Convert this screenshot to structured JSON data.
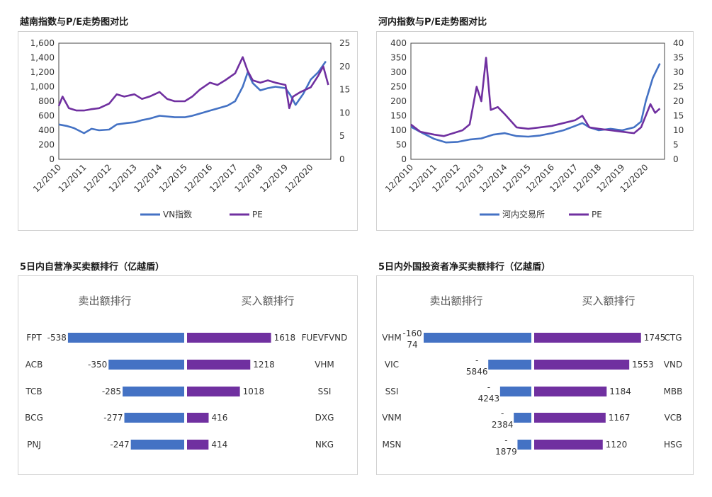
{
  "colors": {
    "blue": "#4472c4",
    "purple": "#7030a0"
  },
  "chart_data": [
    {
      "type": "line",
      "title": "越南指数与P/E走势图对比",
      "x_labels": [
        "12/2010",
        "12/2011",
        "12/2012",
        "12/2013",
        "12/2014",
        "12/2015",
        "12/2016",
        "12/2017",
        "12/2018",
        "12/2019",
        "12/2020"
      ],
      "y_left": {
        "ticks": [
          "0",
          "200",
          "400",
          "600",
          "800",
          "1,000",
          "1,200",
          "1,400",
          "1,600"
        ],
        "range": [
          0,
          1600
        ]
      },
      "y_right": {
        "ticks": [
          "0",
          "5",
          "10",
          "15",
          "20",
          "25"
        ],
        "range": [
          0,
          25
        ]
      },
      "series": [
        {
          "name": "VN指数",
          "axis": "left",
          "color": "#4472c4",
          "values": [
            [
              0,
              480
            ],
            [
              0.3,
              460
            ],
            [
              0.6,
              430
            ],
            [
              1.0,
              360
            ],
            [
              1.3,
              420
            ],
            [
              1.6,
              400
            ],
            [
              2.0,
              410
            ],
            [
              2.3,
              480
            ],
            [
              2.7,
              500
            ],
            [
              3.0,
              510
            ],
            [
              3.3,
              540
            ],
            [
              3.6,
              560
            ],
            [
              4.0,
              600
            ],
            [
              4.3,
              590
            ],
            [
              4.6,
              580
            ],
            [
              5.0,
              580
            ],
            [
              5.3,
              600
            ],
            [
              5.7,
              640
            ],
            [
              6.0,
              670
            ],
            [
              6.3,
              700
            ],
            [
              6.7,
              740
            ],
            [
              7.0,
              800
            ],
            [
              7.3,
              1000
            ],
            [
              7.5,
              1200
            ],
            [
              7.7,
              1050
            ],
            [
              8.0,
              950
            ],
            [
              8.3,
              980
            ],
            [
              8.6,
              1000
            ],
            [
              9.0,
              980
            ],
            [
              9.2,
              880
            ],
            [
              9.4,
              750
            ],
            [
              9.7,
              900
            ],
            [
              10.0,
              1100
            ],
            [
              10.3,
              1200
            ],
            [
              10.6,
              1350
            ]
          ]
        },
        {
          "name": "PE",
          "axis": "right",
          "color": "#7030a0",
          "values": [
            [
              0,
              11.5
            ],
            [
              0.15,
              13.5
            ],
            [
              0.4,
              11
            ],
            [
              0.7,
              10.5
            ],
            [
              1.0,
              10.5
            ],
            [
              1.3,
              10.8
            ],
            [
              1.6,
              11
            ],
            [
              2.0,
              12
            ],
            [
              2.3,
              14
            ],
            [
              2.6,
              13.5
            ],
            [
              3.0,
              14
            ],
            [
              3.3,
              13
            ],
            [
              3.6,
              13.5
            ],
            [
              4.0,
              14.5
            ],
            [
              4.3,
              13
            ],
            [
              4.6,
              12.5
            ],
            [
              5.0,
              12.5
            ],
            [
              5.3,
              13.5
            ],
            [
              5.6,
              15
            ],
            [
              6.0,
              16.5
            ],
            [
              6.3,
              16
            ],
            [
              6.6,
              17
            ],
            [
              7.0,
              18.5
            ],
            [
              7.3,
              22
            ],
            [
              7.5,
              19
            ],
            [
              7.7,
              17
            ],
            [
              8.0,
              16.5
            ],
            [
              8.3,
              17
            ],
            [
              8.6,
              16.5
            ],
            [
              9.0,
              16
            ],
            [
              9.15,
              11
            ],
            [
              9.3,
              13.5
            ],
            [
              9.6,
              14.5
            ],
            [
              10.0,
              15.5
            ],
            [
              10.3,
              18
            ],
            [
              10.5,
              20
            ],
            [
              10.7,
              16
            ]
          ]
        }
      ],
      "legend": [
        "VN指数",
        "PE"
      ]
    },
    {
      "type": "line",
      "title": "河内指数与P/E走势图对比",
      "x_labels": [
        "12/2010",
        "12/2011",
        "12/2012",
        "12/2013",
        "12/2014",
        "12/2015",
        "12/2016",
        "12/2017",
        "12/2018",
        "12/2019",
        "12/2020"
      ],
      "y_left": {
        "ticks": [
          "0",
          "50",
          "100",
          "150",
          "200",
          "250",
          "300",
          "350",
          "400"
        ],
        "range": [
          0,
          400
        ]
      },
      "y_right": {
        "ticks": [
          "0",
          "5",
          "10",
          "15",
          "20",
          "25",
          "30",
          "35",
          "40"
        ],
        "range": [
          0,
          40
        ]
      },
      "series": [
        {
          "name": "河内交易所",
          "axis": "left",
          "color": "#4472c4",
          "values": [
            [
              0,
              112
            ],
            [
              0.5,
              90
            ],
            [
              1.0,
              70
            ],
            [
              1.5,
              58
            ],
            [
              2.0,
              60
            ],
            [
              2.5,
              68
            ],
            [
              3.0,
              72
            ],
            [
              3.5,
              85
            ],
            [
              4.0,
              90
            ],
            [
              4.5,
              80
            ],
            [
              5.0,
              78
            ],
            [
              5.5,
              82
            ],
            [
              6.0,
              90
            ],
            [
              6.5,
              100
            ],
            [
              7.0,
              115
            ],
            [
              7.3,
              125
            ],
            [
              7.6,
              110
            ],
            [
              8.0,
              100
            ],
            [
              8.5,
              105
            ],
            [
              9.0,
              100
            ],
            [
              9.5,
              110
            ],
            [
              9.8,
              130
            ],
            [
              10.0,
              200
            ],
            [
              10.3,
              280
            ],
            [
              10.6,
              330
            ]
          ]
        },
        {
          "name": "PE",
          "axis": "right",
          "color": "#7030a0",
          "values": [
            [
              0,
              12
            ],
            [
              0.4,
              9.5
            ],
            [
              1.0,
              8.5
            ],
            [
              1.4,
              8
            ],
            [
              1.8,
              9
            ],
            [
              2.2,
              10
            ],
            [
              2.5,
              12
            ],
            [
              2.8,
              25
            ],
            [
              3.0,
              20
            ],
            [
              3.2,
              35
            ],
            [
              3.4,
              17
            ],
            [
              3.7,
              18
            ],
            [
              4.0,
              15.5
            ],
            [
              4.5,
              11
            ],
            [
              5.0,
              10.5
            ],
            [
              5.5,
              11
            ],
            [
              6.0,
              11.5
            ],
            [
              6.5,
              12.5
            ],
            [
              7.0,
              13.5
            ],
            [
              7.3,
              15
            ],
            [
              7.6,
              11
            ],
            [
              8.0,
              10.5
            ],
            [
              8.5,
              10
            ],
            [
              9.0,
              9.5
            ],
            [
              9.5,
              9
            ],
            [
              9.8,
              11
            ],
            [
              10.0,
              15
            ],
            [
              10.2,
              19
            ],
            [
              10.4,
              16
            ],
            [
              10.6,
              17.5
            ]
          ]
        }
      ],
      "legend": [
        "河内交易所",
        "PE"
      ]
    },
    {
      "type": "bar",
      "title": "5日内自营净买卖额排行（亿越盾）",
      "sell_header": "卖出额排行",
      "buy_header": "买入额排行",
      "sell": [
        {
          "ticker": "FPT",
          "value": -538,
          "label": "-538"
        },
        {
          "ticker": "ACB",
          "value": -350,
          "label": "-350"
        },
        {
          "ticker": "TCB",
          "value": -285,
          "label": "-285"
        },
        {
          "ticker": "BCG",
          "value": -277,
          "label": "-277"
        },
        {
          "ticker": "PNJ",
          "value": -247,
          "label": "-247"
        }
      ],
      "buy": [
        {
          "ticker": "FUEVFVND",
          "value": 1618,
          "label": "1618"
        },
        {
          "ticker": "VHM",
          "value": 1218,
          "label": "1218"
        },
        {
          "ticker": "SSI",
          "value": 1018,
          "label": "1018"
        },
        {
          "ticker": "DXG",
          "value": 416,
          "label": "416"
        },
        {
          "ticker": "NKG",
          "value": 414,
          "label": "414"
        }
      ]
    },
    {
      "type": "bar",
      "title": "5日内外国投资者净买卖额排行（亿越盾）",
      "sell_header": "卖出额排行",
      "buy_header": "买入额排行",
      "sell": [
        {
          "ticker": "VHM",
          "value": -16074,
          "label_top": "-160",
          "label_bottom": "74"
        },
        {
          "ticker": "VIC",
          "value": -5846,
          "label_top": "-",
          "label_bottom": "5846"
        },
        {
          "ticker": "SSI",
          "value": -4243,
          "label_top": "-",
          "label_bottom": "4243"
        },
        {
          "ticker": "VNM",
          "value": -2384,
          "label_top": "-",
          "label_bottom": "2384"
        },
        {
          "ticker": "MSN",
          "value": -1879,
          "label_top": "-",
          "label_bottom": "1879"
        }
      ],
      "buy": [
        {
          "ticker": "CTG",
          "value": 1745,
          "label": "1745"
        },
        {
          "ticker": "VND",
          "value": 1553,
          "label": "1553"
        },
        {
          "ticker": "MBB",
          "value": 1184,
          "label": "1184"
        },
        {
          "ticker": "VCB",
          "value": 1167,
          "label": "1167"
        },
        {
          "ticker": "HSG",
          "value": 1120,
          "label": "1120"
        }
      ]
    }
  ]
}
